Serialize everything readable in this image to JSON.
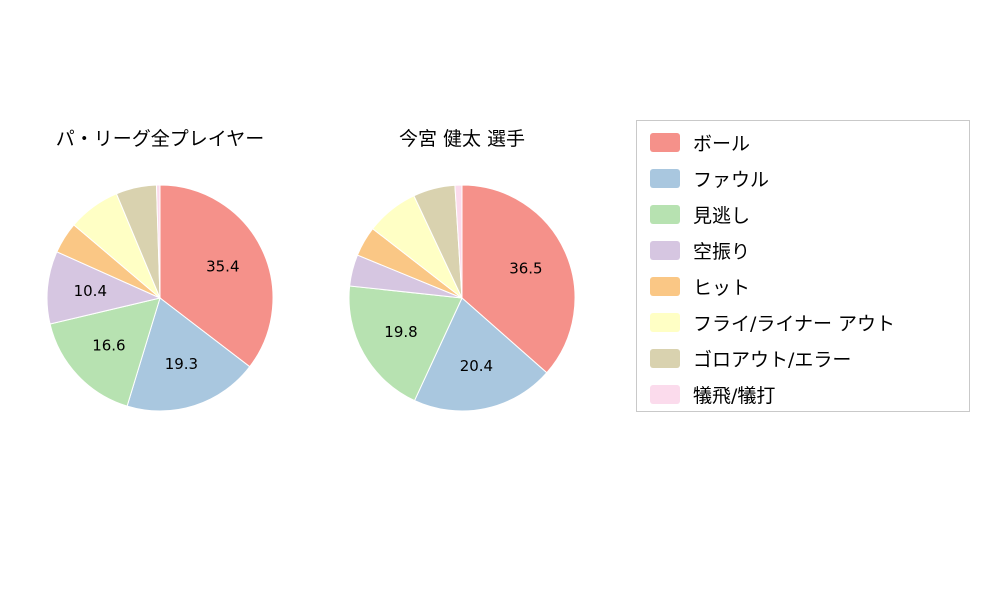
{
  "chart_data": [
    {
      "type": "pie",
      "title": "パ・リーグ全プレイヤー",
      "categories": [
        "ボール",
        "ファウル",
        "見逃し",
        "空振り",
        "ヒット",
        "フライ/ライナー アウト",
        "ゴロアウト/エラー",
        "犠飛/犠打"
      ],
      "values": [
        35.4,
        19.3,
        16.6,
        10.4,
        4.5,
        7.5,
        5.8,
        0.5
      ],
      "value_labels": [
        "35.4",
        "19.3",
        "16.6",
        "10.4",
        "",
        "",
        "",
        ""
      ],
      "colors": [
        "#f5918a",
        "#a9c7df",
        "#b7e2b1",
        "#d6c6e1",
        "#fac785",
        "#ffffc5",
        "#d9d2af",
        "#fbdbec"
      ],
      "start_angle_deg": 90,
      "direction": "clockwise",
      "label_radius_fraction": 0.62
    },
    {
      "type": "pie",
      "title": "今宮 健太  選手",
      "categories": [
        "ボール",
        "ファウル",
        "見逃し",
        "空振り",
        "ヒット",
        "フライ/ライナー アウト",
        "ゴロアウト/エラー",
        "犠飛/犠打"
      ],
      "values": [
        36.5,
        20.4,
        19.8,
        4.5,
        4.3,
        7.5,
        6.0,
        1.0
      ],
      "value_labels": [
        "36.5",
        "20.4",
        "19.8",
        "",
        "",
        "",
        "",
        ""
      ],
      "colors": [
        "#f5918a",
        "#a9c7df",
        "#b7e2b1",
        "#d6c6e1",
        "#fac785",
        "#ffffc5",
        "#d9d2af",
        "#fbdbec"
      ],
      "start_angle_deg": 90,
      "direction": "clockwise",
      "label_radius_fraction": 0.62
    }
  ],
  "legend": {
    "position": "right",
    "items": [
      {
        "label": "ボール",
        "color": "#f5918a"
      },
      {
        "label": "ファウル",
        "color": "#a9c7df"
      },
      {
        "label": "見逃し",
        "color": "#b7e2b1"
      },
      {
        "label": "空振り",
        "color": "#d6c6e1"
      },
      {
        "label": "ヒット",
        "color": "#fac785"
      },
      {
        "label": "フライ/ライナー アウト",
        "color": "#ffffc5"
      },
      {
        "label": "ゴロアウト/エラー",
        "color": "#d9d2af"
      },
      {
        "label": "犠飛/犠打",
        "color": "#fbdbec"
      }
    ]
  }
}
